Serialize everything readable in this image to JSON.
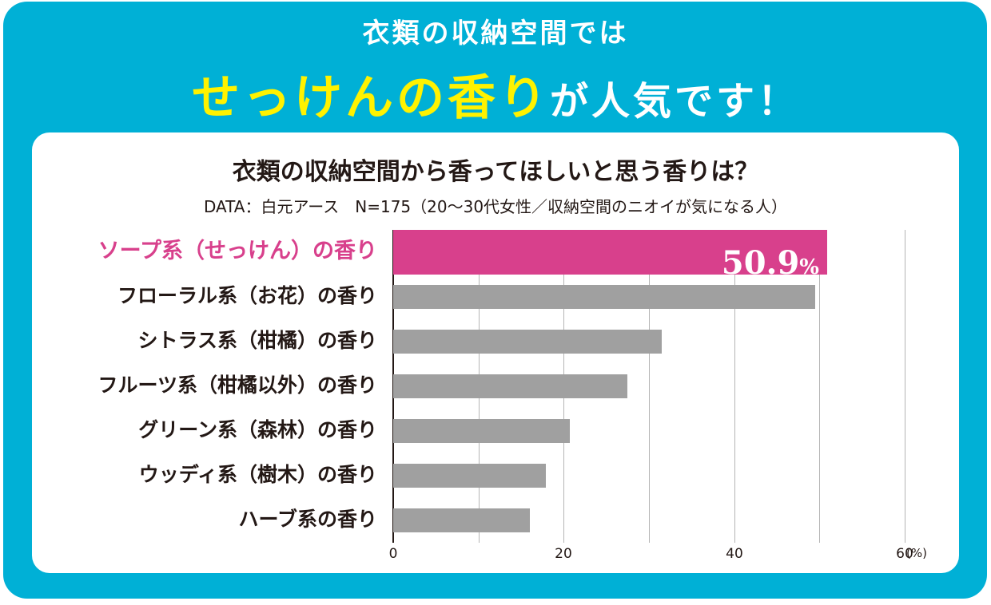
{
  "headline": {
    "line1": "衣類の収納空間では",
    "highlight": "せっけんの香り",
    "rest": "が人気です！"
  },
  "chart_data": {
    "type": "bar",
    "orientation": "horizontal",
    "title": "衣類の収納空間から香ってほしいと思う香りは？",
    "subtitle": "DATA：白元アース　N=175（20〜30代女性／収納空間のニオイが気になる人）",
    "categories": [
      "ソープ系（せっけん）の香り",
      "フローラル系（お花）の香り",
      "シトラス系（柑橘）の香り",
      "フルーツ系（柑橘以外）の香り",
      "グリーン系（森林）の香り",
      "ウッディ系（樹木）の香り",
      "ハーブ系の香り"
    ],
    "values": [
      50.9,
      49.5,
      31.5,
      27.5,
      20.7,
      17.9,
      16.0
    ],
    "highlight_index": 0,
    "data_label": {
      "value": "50.9",
      "unit": "%"
    },
    "xlim": [
      0,
      60
    ],
    "xticks": [
      "0",
      "20",
      "40",
      "60"
    ],
    "x_unit": "(%)",
    "grid": true,
    "colors": {
      "highlight": "#d8408c",
      "bar": "#a0a0a0",
      "frame": "#00b0d6",
      "headline_highlight": "#fff200"
    }
  }
}
